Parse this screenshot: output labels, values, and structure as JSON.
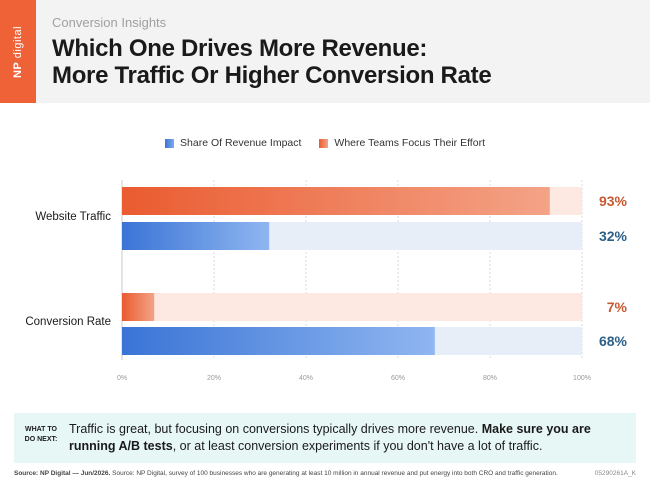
{
  "header": {
    "brand_np": "NP",
    "brand_digital": "digital",
    "subtitle": "Conversion Insights",
    "title_line1": "Which One Drives More Revenue:",
    "title_line2": "More Traffic Or Higher Conversion Rate"
  },
  "legend": {
    "item1": "Share Of Revenue Impact",
    "item2": "Where Teams Focus Their Effort"
  },
  "chart_data": {
    "type": "bar",
    "orientation": "horizontal",
    "categories": [
      "Website Traffic",
      "Conversion Rate"
    ],
    "series": [
      {
        "name": "Where Teams Focus Their Effort",
        "values": [
          93,
          7
        ],
        "labels": [
          "93%",
          "7%"
        ],
        "color": "#ea5b30",
        "track_color": "#fde9e2",
        "label_color": "#c65a32"
      },
      {
        "name": "Share Of Revenue Impact",
        "values": [
          32,
          68
        ],
        "labels": [
          "32%",
          "68%"
        ],
        "color": "#3a74d6",
        "track_color": "#e8eef8",
        "label_color": "#2c5f86"
      }
    ],
    "xlim": [
      0,
      100
    ],
    "ticks": [
      0,
      20,
      40,
      60,
      80,
      100
    ],
    "tick_labels": [
      "0%",
      "20%",
      "40%",
      "60%",
      "80%",
      "100%"
    ],
    "grid": true,
    "legend_position": "top-center"
  },
  "callout": {
    "tag_line1": "WHAT TO",
    "tag_line2": "DO NEXT:",
    "text_part1": "Traffic is great, but focusing on conversions typically drives more revenue. ",
    "text_bold": "Make sure you are running A/B tests",
    "text_part2": ", or at least conversion experiments if you don't have a lot of traffic."
  },
  "footer": {
    "source_bold": "Source: NP Digital — Jun/2026.",
    "source_text": " Source: NP Digital, survey of 100 businesses who are generating at least 10 million in annual revenue and put energy into both CRO and traffic generation.",
    "code": "05290261A_K"
  }
}
